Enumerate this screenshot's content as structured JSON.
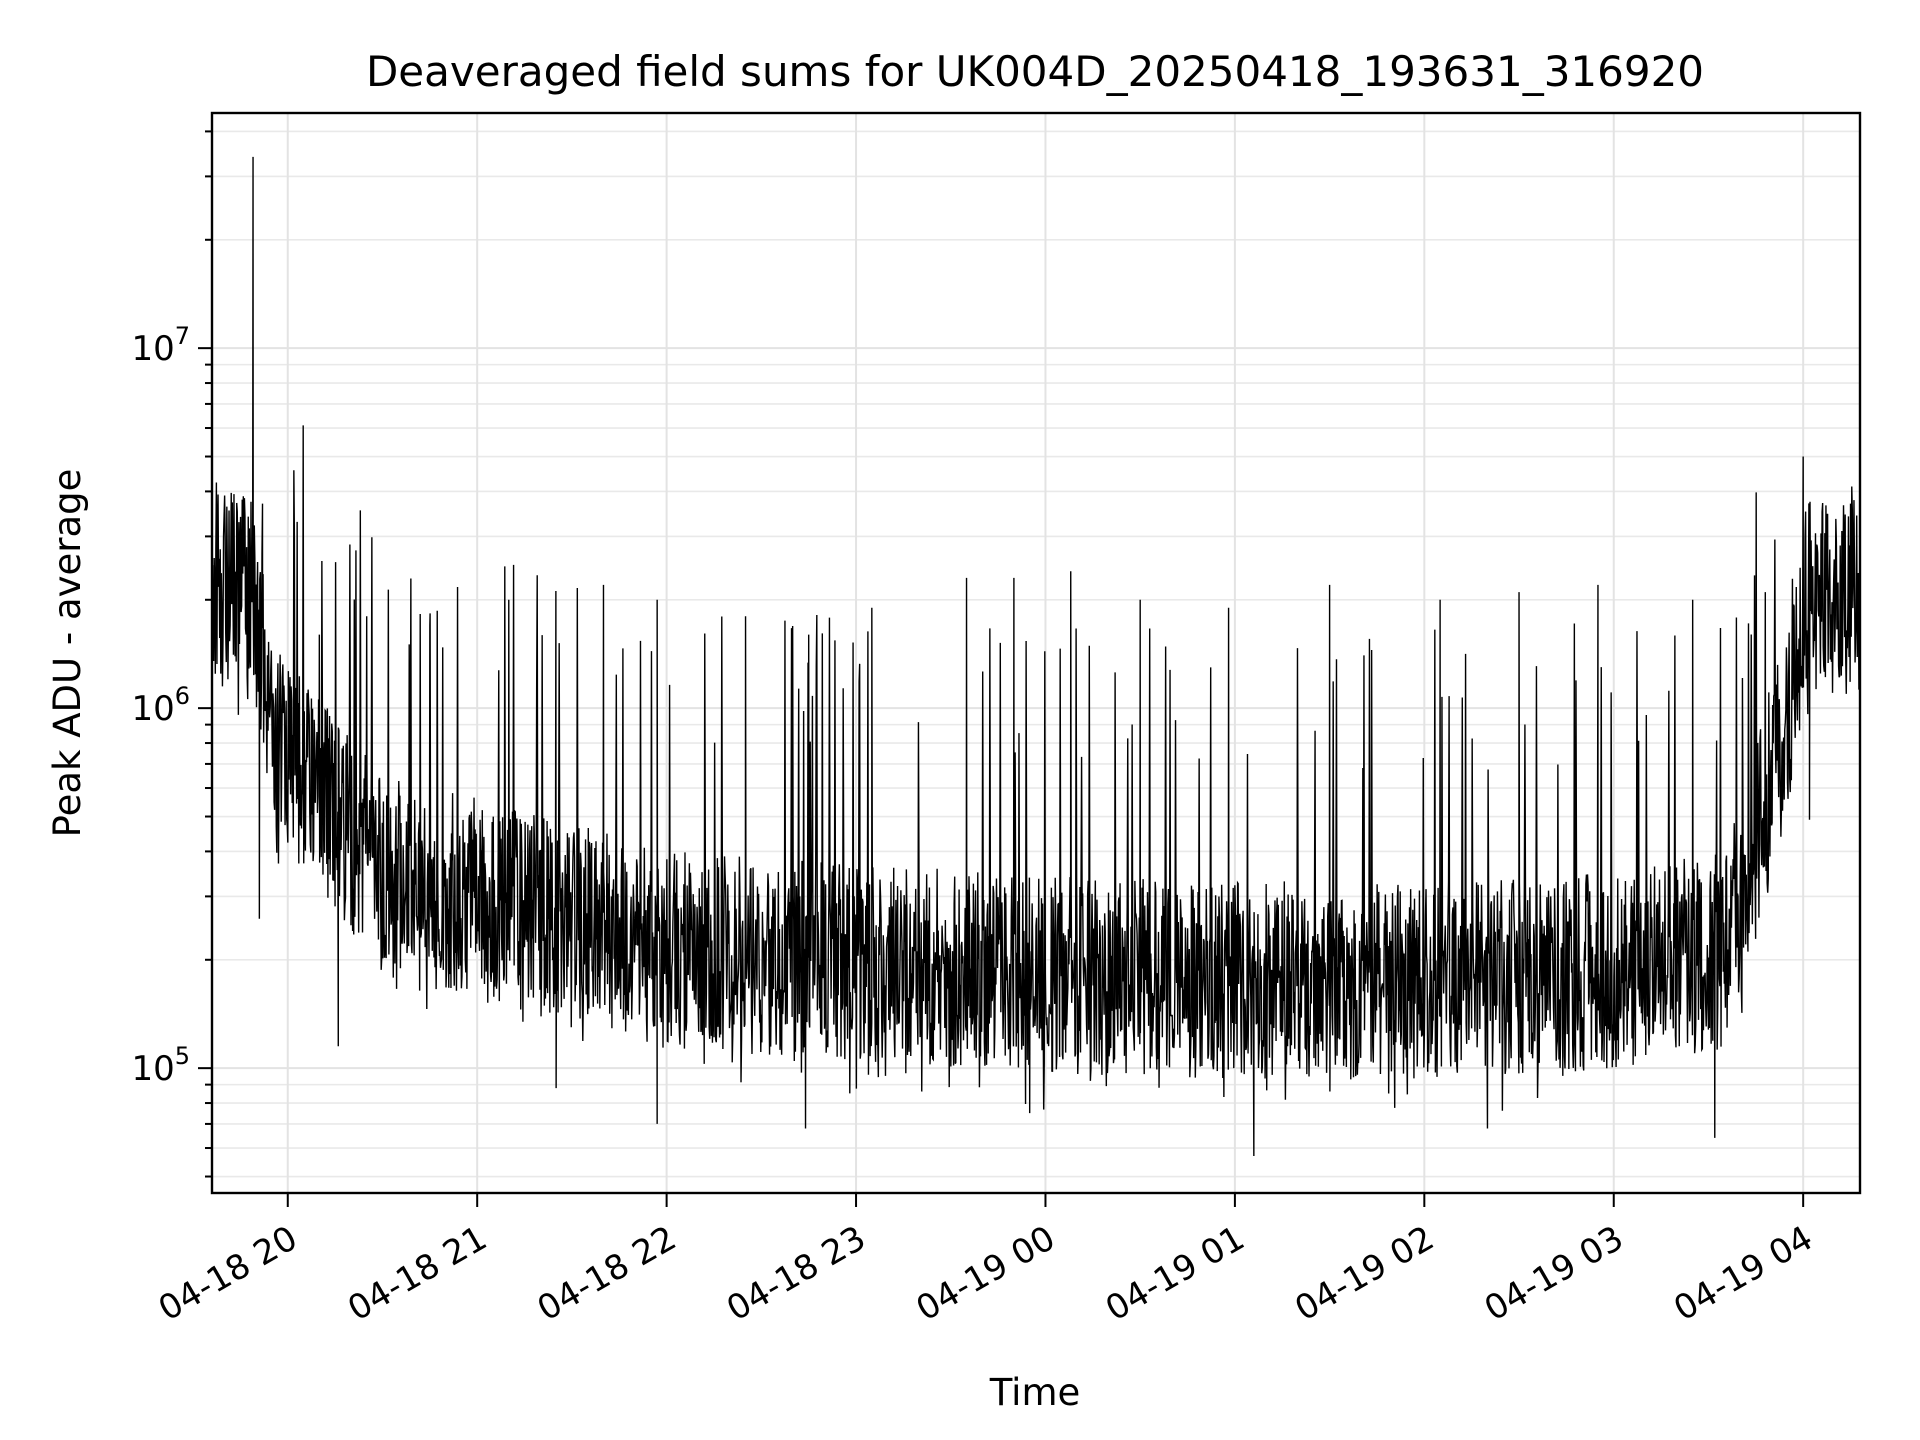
{
  "chart_data": {
    "type": "line",
    "title": "Deaveraged field sums for UK004D_20250418_193631_316920",
    "xlabel": "Time",
    "ylabel": "Peak ADU - average",
    "yscale": "log",
    "xlim": [
      "2025-04-18 19:36",
      "2025-04-19 04:18"
    ],
    "ylim": [
      45000,
      45000000
    ],
    "grid": true,
    "x_ticks": [
      "04-18 20",
      "04-18 21",
      "04-18 22",
      "04-18 23",
      "04-19 00",
      "04-19 01",
      "04-19 02",
      "04-19 03",
      "04-19 04"
    ],
    "y_ticks": [
      {
        "base": "10",
        "exp": "5",
        "value": 100000
      },
      {
        "base": "10",
        "exp": "6",
        "value": 1000000
      },
      {
        "base": "10",
        "exp": "7",
        "value": 10000000
      }
    ],
    "series": [
      {
        "color": "#000000",
        "baseline": [
          [
            "2025-04-18 19:36",
            2200000
          ],
          [
            "2025-04-18 19:50",
            2000000
          ],
          [
            "2025-04-18 19:55",
            800000
          ],
          [
            "2025-04-18 20:10",
            550000
          ],
          [
            "2025-04-18 20:30",
            320000
          ],
          [
            "2025-04-18 21:00",
            280000
          ],
          [
            "2025-04-18 21:30",
            240000
          ],
          [
            "2025-04-18 22:00",
            200000
          ],
          [
            "2025-04-18 23:00",
            185000
          ],
          [
            "2025-04-19 00:00",
            170000
          ],
          [
            "2025-04-19 01:00",
            165000
          ],
          [
            "2025-04-19 02:00",
            165000
          ],
          [
            "2025-04-19 03:00",
            175000
          ],
          [
            "2025-04-19 03:35",
            200000
          ],
          [
            "2025-04-19 03:45",
            400000
          ],
          [
            "2025-04-19 03:55",
            900000
          ],
          [
            "2025-04-19 04:00",
            1900000
          ],
          [
            "2025-04-19 04:18",
            2100000
          ]
        ],
        "peaks": [
          [
            "2025-04-18 19:49",
            34000000
          ],
          [
            "2025-04-18 19:52",
            3700000
          ],
          [
            "2025-04-18 20:10",
            1600000
          ],
          [
            "2025-04-18 20:25",
            1800000
          ],
          [
            "2025-04-18 20:45",
            1700000
          ],
          [
            "2025-04-18 21:10",
            2000000
          ],
          [
            "2025-04-18 21:40",
            2200000
          ],
          [
            "2025-04-18 21:57",
            2000000
          ],
          [
            "2025-04-18 22:25",
            1800000
          ],
          [
            "2025-04-18 22:45",
            1600000
          ],
          [
            "2025-04-18 23:05",
            1900000
          ],
          [
            "2025-04-18 23:35",
            2300000
          ],
          [
            "2025-04-18 23:50",
            2300000
          ],
          [
            "2025-04-19 00:08",
            2400000
          ],
          [
            "2025-04-19 00:30",
            2000000
          ],
          [
            "2025-04-19 00:58",
            1900000
          ],
          [
            "2025-04-19 01:30",
            2200000
          ],
          [
            "2025-04-19 02:05",
            2000000
          ],
          [
            "2025-04-19 02:30",
            2100000
          ],
          [
            "2025-04-19 02:55",
            2200000
          ],
          [
            "2025-04-19 03:25",
            2000000
          ],
          [
            "2025-04-19 03:48",
            2100000
          ],
          [
            "2025-04-19 04:00",
            5000000
          ],
          [
            "2025-04-19 04:15",
            3700000
          ]
        ],
        "troughs": [
          [
            "2025-04-18 19:51",
            260000
          ],
          [
            "2025-04-18 20:16",
            115000
          ],
          [
            "2025-04-18 21:25",
            88000
          ],
          [
            "2025-04-18 21:57",
            70000
          ],
          [
            "2025-04-18 22:44",
            68000
          ],
          [
            "2025-04-18 23:55",
            75000
          ],
          [
            "2025-04-19 01:06",
            57000
          ],
          [
            "2025-04-19 02:20",
            68000
          ],
          [
            "2025-04-19 03:32",
            64000
          ],
          [
            "2025-04-19 04:02",
            490000
          ]
        ]
      }
    ]
  }
}
